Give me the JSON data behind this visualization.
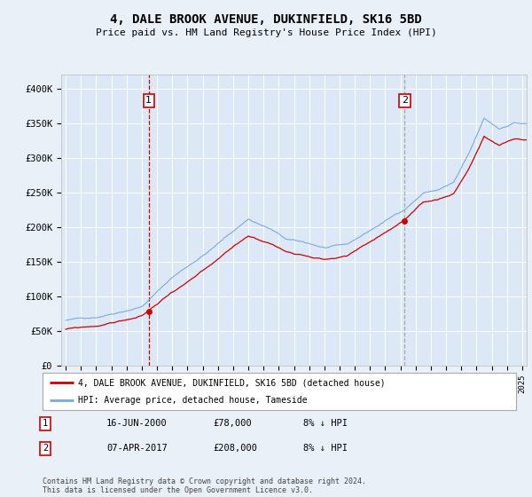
{
  "title": "4, DALE BROOK AVENUE, DUKINFIELD, SK16 5BD",
  "subtitle": "Price paid vs. HM Land Registry's House Price Index (HPI)",
  "bg_color": "#eaf0f8",
  "plot_bg_color": "#dce8f5",
  "ylabel_ticks": [
    "£0",
    "£50K",
    "£100K",
    "£150K",
    "£200K",
    "£250K",
    "£300K",
    "£350K",
    "£400K"
  ],
  "ytick_vals": [
    0,
    50000,
    100000,
    150000,
    200000,
    250000,
    300000,
    350000,
    400000
  ],
  "ylim": [
    0,
    420000
  ],
  "xlim_start": 1994.7,
  "xlim_end": 2025.3,
  "purchase1_date": 2000.46,
  "purchase1_price": 78000,
  "purchase1_label": "1",
  "purchase1_date_str": "16-JUN-2000",
  "purchase1_price_str": "£78,000",
  "purchase1_hpi_str": "8% ↓ HPI",
  "purchase2_date": 2017.27,
  "purchase2_price": 208000,
  "purchase2_label": "2",
  "purchase2_date_str": "07-APR-2017",
  "purchase2_price_str": "£208,000",
  "purchase2_hpi_str": "8% ↓ HPI",
  "line1_color": "#cc0000",
  "line2_color": "#7aaadd",
  "grid_color": "#ffffff",
  "vline1_color": "#cc0000",
  "vline2_color": "#999999",
  "legend1_label": "4, DALE BROOK AVENUE, DUKINFIELD, SK16 5BD (detached house)",
  "legend2_label": "HPI: Average price, detached house, Tameside",
  "footer": "Contains HM Land Registry data © Crown copyright and database right 2024.\nThis data is licensed under the Open Government Licence v3.0."
}
